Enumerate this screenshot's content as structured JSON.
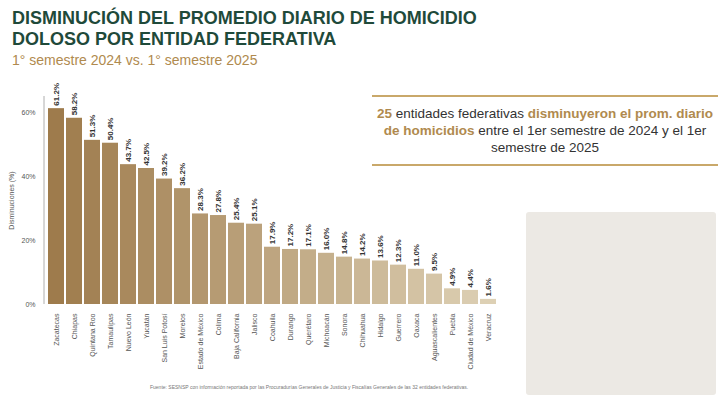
{
  "chart_data": {
    "type": "bar",
    "title": "DISMINUCIÓN DEL PROMEDIO DIARIO DE HOMICIDIO DOLOSO POR ENTIDAD FEDERATIVA",
    "subtitle": "1° semestre 2024 vs. 1° semestre 2025",
    "annotation": [
      "25",
      "entidades federativas",
      "disminuyeron el prom. diario de homicidios",
      "entre el 1er semestre de 2024 y el 1er semestre de 2025"
    ],
    "source": "Fuente: SESNSP con información reportada por las Procuradurías Generales de Justicia y Fiscalías Generales de las 32 entidades federativas.",
    "y_label": "Disminuciones (%)",
    "categories": [
      "Zacatecas",
      "Chiapas",
      "Quintana Roo",
      "Tamaulipas",
      "Nuevo León",
      "Yucatán",
      "San Luis Potosí",
      "Morelos",
      "Estado de México",
      "Colima",
      "Baja California",
      "Jalisco",
      "Coahuila",
      "Durango",
      "Querétaro",
      "Michoacán",
      "Sonora",
      "Chihuahua",
      "Hidalgo",
      "Guerrero",
      "Oaxaca",
      "Aguascalientes",
      "Puebla",
      "Ciudad de México",
      "Veracruz"
    ],
    "values": [
      61.2,
      58.2,
      51.3,
      50.4,
      43.7,
      42.5,
      39.2,
      36.2,
      28.3,
      27.8,
      25.4,
      25.1,
      17.9,
      17.2,
      17.1,
      16.0,
      14.8,
      14.2,
      13.6,
      12.3,
      11.0,
      9.5,
      4.9,
      4.4,
      1.6
    ],
    "value_labels": [
      "61.2%",
      "58.2%",
      "51.3%",
      "50.4%",
      "43.7%",
      "42.5%",
      "39.2%",
      "36.2%",
      "28.3%",
      "27.8%",
      "25.4%",
      "25.1%",
      "17.9%",
      "17.2%",
      "17.1%",
      "16.0%",
      "14.8%",
      "14.2%",
      "13.6%",
      "12.3%",
      "11.0%",
      "9.5%",
      "4.9%",
      "4.4%",
      "1.6%"
    ],
    "colors": [
      "#9e7b4c",
      "#a17f50",
      "#a38255",
      "#a68659",
      "#a9895d",
      "#ab8d62",
      "#ae9066",
      "#b0946a",
      "#b3976f",
      "#b69b73",
      "#b89e77",
      "#bba27c",
      "#bea580",
      "#c0a984",
      "#c3ad89",
      "#c5b08d",
      "#c8b491",
      "#cbb796",
      "#cdbb9a",
      "#d0be9e",
      "#d3c2a3",
      "#d5c5a7",
      "#d8c9ab",
      "#daccb0",
      "#ddd0b4"
    ],
    "ylim": [
      0,
      65
    ],
    "yticks": [
      {
        "value": 0,
        "label": "0%"
      },
      {
        "value": 20,
        "label": "20%"
      },
      {
        "value": 40,
        "label": "40%"
      },
      {
        "value": 60,
        "label": "60%"
      }
    ],
    "grid": false,
    "data_labels": true
  }
}
